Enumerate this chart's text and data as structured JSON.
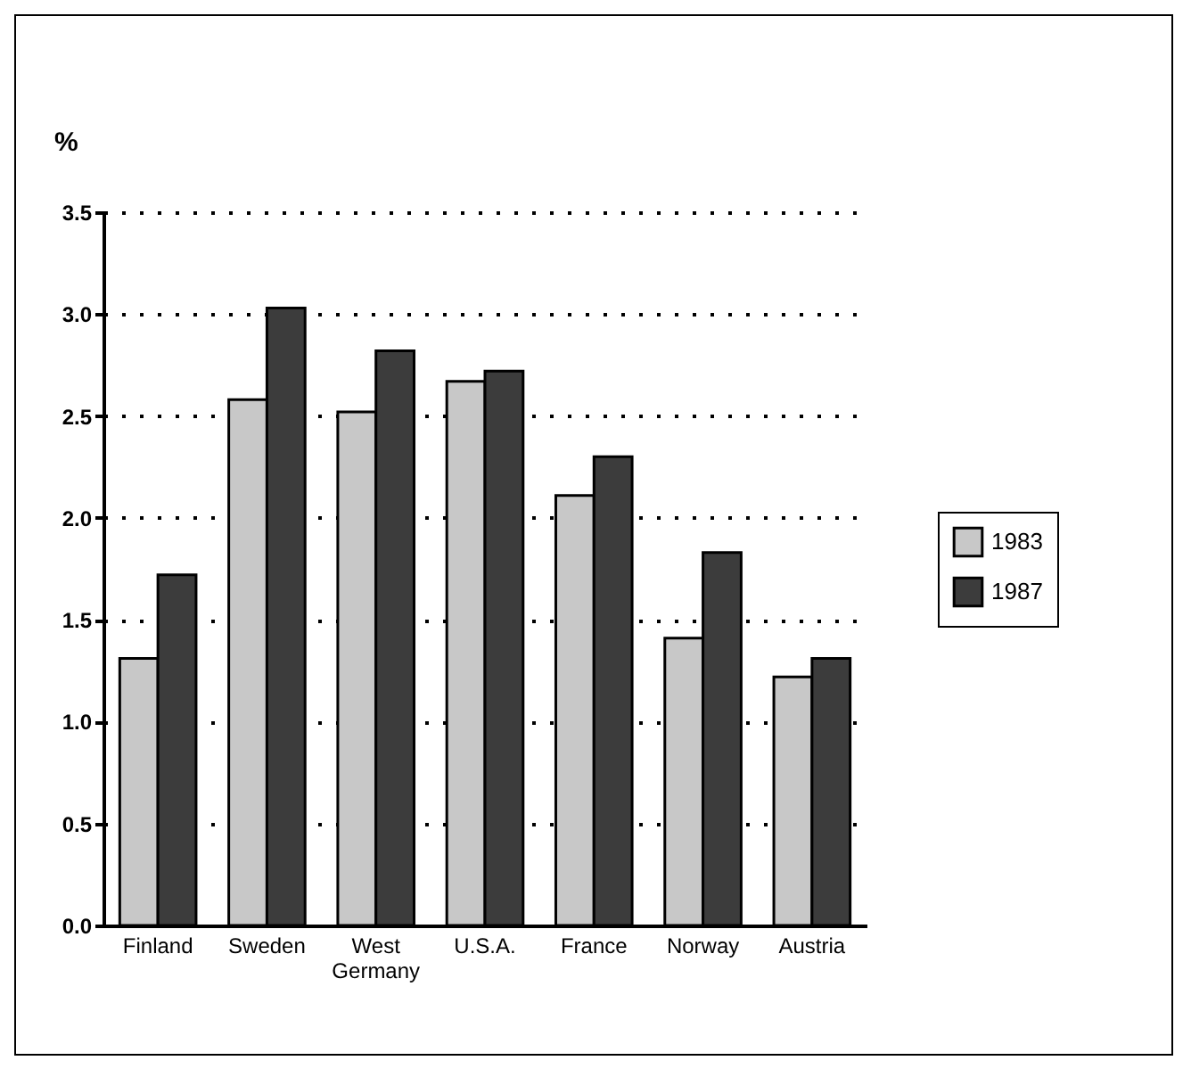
{
  "chart_data": {
    "type": "bar",
    "ylabel": "%",
    "categories": [
      "Finland",
      "Sweden",
      "West Germany",
      "U.S.A.",
      "France",
      "Norway",
      "Austria"
    ],
    "series": [
      {
        "name": "1983",
        "color": "#c8c8c8",
        "values": [
          1.31,
          2.58,
          2.52,
          2.67,
          2.11,
          1.41,
          1.22
        ]
      },
      {
        "name": "1987",
        "color": "#3c3c3c",
        "values": [
          1.72,
          3.03,
          2.82,
          2.72,
          2.3,
          1.83,
          1.31
        ]
      }
    ],
    "ylim": [
      0,
      3.5
    ],
    "yticks": [
      {
        "value": 0,
        "label": "0.0"
      },
      {
        "value": 0.5,
        "label": "0.5"
      },
      {
        "value": 1,
        "label": "1.0"
      },
      {
        "value": 1.5,
        "label": "1.5"
      },
      {
        "value": 2,
        "label": "2.0"
      },
      {
        "value": 2.5,
        "label": "2.5"
      },
      {
        "value": 3,
        "label": "3.0"
      },
      {
        "value": 3.5,
        "label": "3.5"
      }
    ],
    "grid": "y",
    "legend": "right"
  }
}
